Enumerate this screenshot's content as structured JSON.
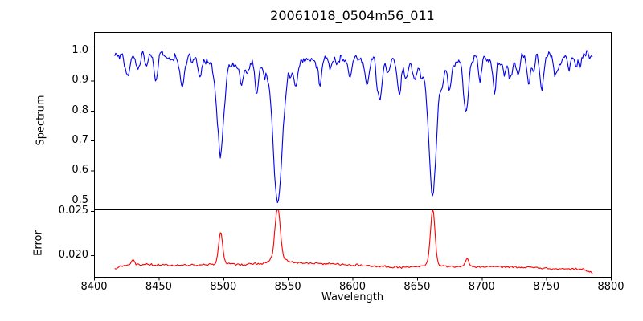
{
  "title": "20061018_0504m56_011",
  "chart_data": {
    "type": "line",
    "title": "20061018_0504m56_011",
    "xlabel": "Wavelength",
    "grid": false,
    "legend": null,
    "xlim": [
      8400,
      8800
    ],
    "x_ticks": [
      8400,
      8450,
      8500,
      8550,
      8600,
      8650,
      8700,
      8750,
      8800
    ],
    "x_tick_labels": [
      "8400",
      "8450",
      "8500",
      "8550",
      "8600",
      "8650",
      "8700",
      "8750",
      "8800"
    ],
    "x_data_range": [
      8416,
      8786
    ],
    "sample_step": 0.75,
    "panels": [
      {
        "id": "spectrum",
        "ylabel": "Spectrum",
        "ylim": [
          0.47,
          1.062
        ],
        "y_ticks": [
          1.0,
          0.9,
          0.8,
          0.7,
          0.6,
          0.5
        ],
        "y_tick_labels": [
          "1.0",
          "0.9",
          "0.8",
          "0.7",
          "0.6",
          "0.5"
        ],
        "line_color": "#0000ee",
        "continuum": 0.985,
        "noise_sigma": 0.012,
        "micro_line_count": 70,
        "features": [
          {
            "center": 8427.0,
            "depth": 0.04,
            "width": 1.2
          },
          {
            "center": 8434.0,
            "depth": 0.048,
            "width": 1.2
          },
          {
            "center": 8440.5,
            "depth": 0.038,
            "width": 1.0
          },
          {
            "center": 8447.5,
            "depth": 0.06,
            "width": 1.3
          },
          {
            "center": 8468.5,
            "depth": 0.078,
            "width": 1.6
          },
          {
            "center": 8482.0,
            "depth": 0.048,
            "width": 1.2
          },
          {
            "center": 8498.0,
            "depth": 0.27,
            "width": 2.3,
            "wing_depth": 0.058,
            "wing_width": 7
          },
          {
            "center": 8514.0,
            "depth": 0.068,
            "width": 1.5
          },
          {
            "center": 8526.0,
            "depth": 0.048,
            "width": 1.2
          },
          {
            "center": 8542.1,
            "depth": 0.4,
            "width": 3.1,
            "wing_depth": 0.1,
            "wing_width": 11
          },
          {
            "center": 8556.0,
            "depth": 0.065,
            "width": 1.3
          },
          {
            "center": 8575.0,
            "depth": 0.058,
            "width": 1.3
          },
          {
            "center": 8583.0,
            "depth": 0.048,
            "width": 1.2
          },
          {
            "center": 8598.0,
            "depth": 0.052,
            "width": 1.2
          },
          {
            "center": 8611.0,
            "depth": 0.072,
            "width": 1.4
          },
          {
            "center": 8621.5,
            "depth": 0.062,
            "width": 1.3
          },
          {
            "center": 8637.0,
            "depth": 0.046,
            "width": 1.2
          },
          {
            "center": 8648.0,
            "depth": 0.052,
            "width": 1.2
          },
          {
            "center": 8662.1,
            "depth": 0.385,
            "width": 2.7,
            "wing_depth": 0.082,
            "wing_width": 9
          },
          {
            "center": 8674.8,
            "depth": 0.056,
            "width": 1.2
          },
          {
            "center": 8688.6,
            "depth": 0.12,
            "width": 1.9
          },
          {
            "center": 8699.0,
            "depth": 0.048,
            "width": 1.2
          },
          {
            "center": 8710.0,
            "depth": 0.055,
            "width": 1.3
          },
          {
            "center": 8717.5,
            "depth": 0.055,
            "width": 1.2
          },
          {
            "center": 8728.0,
            "depth": 0.055,
            "width": 1.3
          },
          {
            "center": 8736.5,
            "depth": 0.085,
            "width": 1.5
          },
          {
            "center": 8747.0,
            "depth": 0.07,
            "width": 1.4
          },
          {
            "center": 8757.0,
            "depth": 0.052,
            "width": 1.2
          },
          {
            "center": 8768.0,
            "depth": 0.046,
            "width": 1.1
          },
          {
            "center": 8776.5,
            "depth": 0.042,
            "width": 1.1
          }
        ]
      },
      {
        "id": "error",
        "ylabel": "Error",
        "ylim": [
          0.01755,
          0.02518
        ],
        "y_ticks": [
          0.025,
          0.02
        ],
        "y_tick_labels": [
          "0.025",
          "0.020"
        ],
        "line_color": "#ff0000",
        "baseline": 0.01875,
        "noise_sigma": 0.0001,
        "peaks": [
          {
            "center": 8430.0,
            "height": 0.0006,
            "width": 1.3
          },
          {
            "center": 8498.0,
            "height": 0.0034,
            "width": 1.5,
            "wing_height": 0.0004,
            "wing_width": 5
          },
          {
            "center": 8542.1,
            "height": 0.0058,
            "width": 2.0,
            "wing_height": 0.0006,
            "wing_width": 7
          },
          {
            "center": 8662.1,
            "height": 0.0061,
            "width": 1.7,
            "wing_height": 0.0005,
            "wing_width": 6
          },
          {
            "center": 8688.6,
            "height": 0.0009,
            "width": 1.4
          }
        ]
      }
    ]
  }
}
